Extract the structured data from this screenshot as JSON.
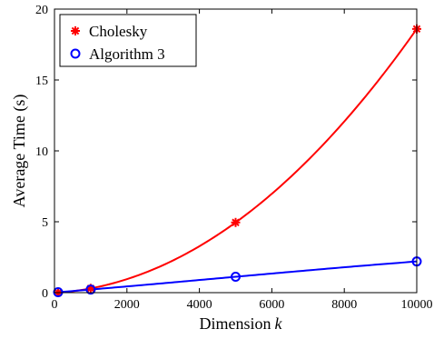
{
  "chart_data": {
    "type": "line",
    "title": "",
    "xlabel": "Dimension",
    "xlabel_var": "k",
    "ylabel": "Average Time (s)",
    "xlim": [
      0,
      10000
    ],
    "ylim": [
      0,
      20
    ],
    "xticks": [
      0,
      2000,
      4000,
      6000,
      8000,
      10000
    ],
    "yticks": [
      0,
      5,
      10,
      15,
      20
    ],
    "grid": false,
    "legend_position": "top-left",
    "series": [
      {
        "name": "Cholesky",
        "color": "#ff0000",
        "marker": "asterisk",
        "points": [
          [
            100,
            0.0
          ],
          [
            1000,
            0.3
          ],
          [
            5000,
            4.95
          ],
          [
            10000,
            18.6
          ]
        ]
      },
      {
        "name": "Algorithm 3",
        "color": "#0000ff",
        "marker": "circle",
        "points": [
          [
            100,
            0.03
          ],
          [
            1000,
            0.22
          ],
          [
            5000,
            1.12
          ],
          [
            10000,
            2.2
          ]
        ]
      }
    ]
  }
}
